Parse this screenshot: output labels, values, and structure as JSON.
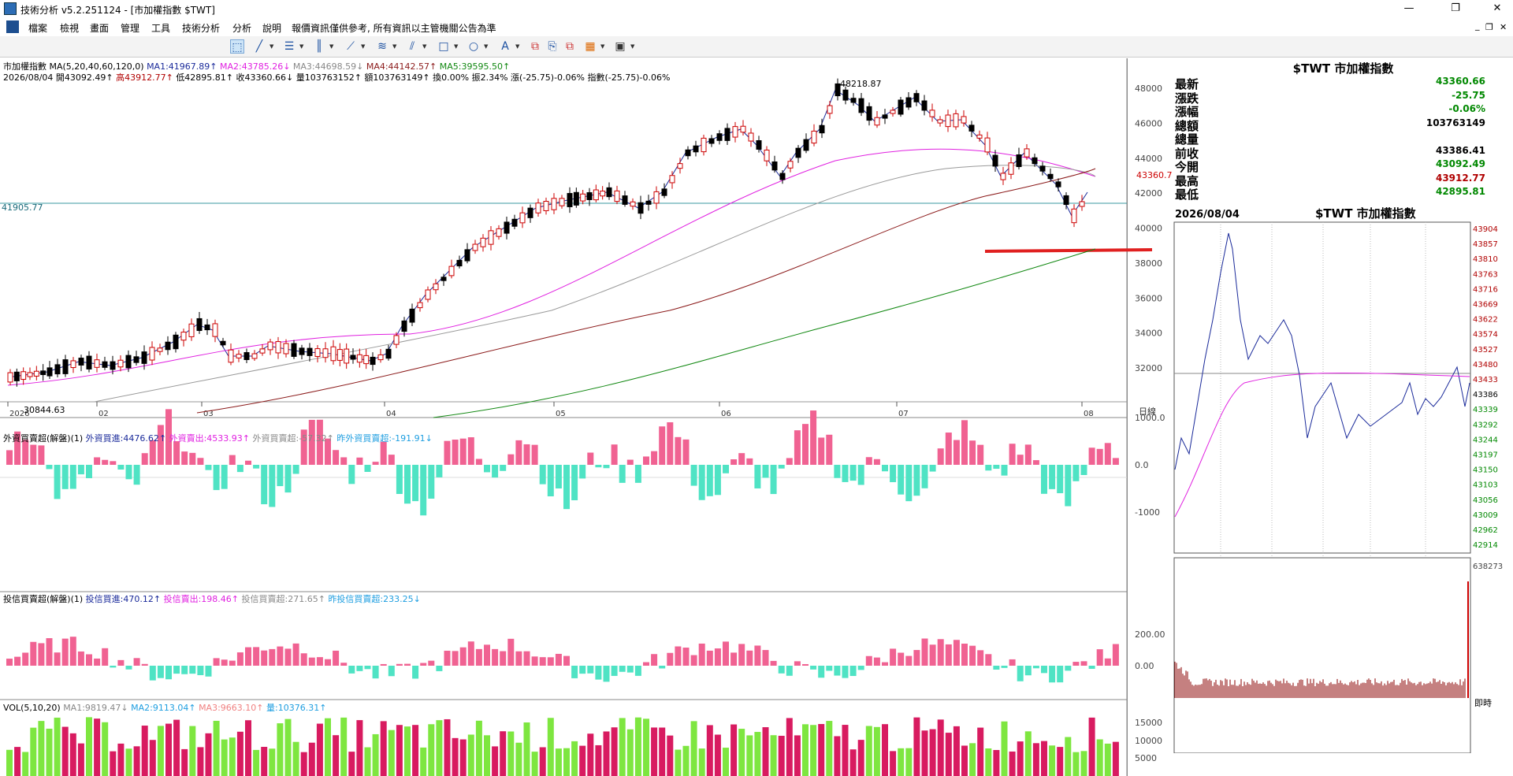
{
  "window": {
    "title": "技術分析 v5.2.251124 - [市加權指數 $TWT]",
    "min": "—",
    "restore": "❐",
    "close": "✕",
    "mdi_min": "_",
    "mdi_restore": "❐",
    "mdi_close": "✕"
  },
  "menu": [
    "檔案",
    "檢視",
    "畫面",
    "管理",
    "工具",
    "技術分析",
    "分析",
    "說明",
    "報價資訊僅供參考, 所有資訊以主管機關公告為準"
  ],
  "toolbar": {
    "icons": [
      "cursor-icon",
      "line-icon",
      "text-icon",
      "bars-icon",
      "fan-icon",
      "channel-icon",
      "pitchfork-icon",
      "rect-icon",
      "ellipse-icon",
      "text-a-icon",
      "copy-icon",
      "paste-icon",
      "grid-icon",
      "save-icon"
    ]
  },
  "main": {
    "title_line": "市加權指數 MA(5,20,40,60,120,0)",
    "ma_values": [
      {
        "text": "MA1:41967.89↑",
        "color": "#1a2a9a"
      },
      {
        "text": "MA2:43785.26↓",
        "color": "#e020e0"
      },
      {
        "text": "MA3:44698.59↓",
        "color": "#888888"
      },
      {
        "text": "MA4:44142.57↑",
        "color": "#8b1a1a"
      },
      {
        "text": "MA5:39595.50↑",
        "color": "#118811"
      }
    ],
    "ohlc": [
      {
        "text": "2026/08/04",
        "color": "#000"
      },
      {
        "text": "開43092.49↑",
        "color": "#000"
      },
      {
        "text": "高43912.77↑",
        "color": "#b00000"
      },
      {
        "text": "低42895.81↑",
        "color": "#000"
      },
      {
        "text": "收43360.66↓",
        "color": "#000"
      },
      {
        "text": "量103763152↑",
        "color": "#000"
      },
      {
        "text": "額103763149↑",
        "color": "#000"
      },
      {
        "text": "換0.00%",
        "color": "#000"
      },
      {
        "text": "振2.34%",
        "color": "#000"
      },
      {
        "text": "漲(-25.75)-0.06%",
        "color": "#000"
      },
      {
        "text": "指數(-25.75)-0.06%",
        "color": "#000"
      }
    ],
    "hline_label": "41905.77",
    "high_label": "48218.87",
    "low_label": "30844.63",
    "last_label": "43360.7",
    "months": [
      "2026",
      "02",
      "03",
      "04",
      "05",
      "06",
      "07",
      "08"
    ],
    "month_unit": "日線",
    "y_ticks": [
      "48000",
      "46000",
      "44000",
      "42000",
      "40000",
      "38000",
      "36000",
      "34000",
      "32000"
    ],
    "foreign": {
      "title": "外資買賣超(解盤)(1)",
      "buy": "外資買進:4476.62↑",
      "sell": "外資賣出:4533.93↑",
      "net": "外資買賣超:-57.32↑",
      "prev": "昨外資買賣超:-191.91↓",
      "ticks": [
        "1000.0",
        "0.0",
        "-1000"
      ]
    },
    "trust": {
      "title": "投信買賣超(解盤)(1)",
      "buy": "投信買進:470.12↑",
      "sell": "投信賣出:198.46↑",
      "net": "投信買賣超:271.65↑",
      "prev": "昨投信買賣超:233.25↓",
      "ticks": [
        "200.00",
        "0.00"
      ]
    },
    "volume": {
      "title": "VOL(5,10,20)",
      "ma1": "MA1:9819.47↓",
      "ma2": "MA2:9113.04↑",
      "ma3": "MA3:9663.10↑",
      "qty": "量:10376.31↑",
      "ticks": [
        "15000",
        "10000",
        "5000"
      ]
    }
  },
  "quote": {
    "title": "$TWT 市加權指數",
    "rows": [
      {
        "label": "最新",
        "value": "43360.66",
        "color": "#008800"
      },
      {
        "label": "漲跌",
        "value": "-25.75",
        "color": "#008800"
      },
      {
        "label": "漲幅",
        "value": "-0.06%",
        "color": "#008800"
      },
      {
        "label": "總額",
        "value": "103763149",
        "color": "#000000"
      },
      {
        "label": "總量",
        "value": "",
        "color": "#000000"
      },
      {
        "label": "前收",
        "value": "43386.41",
        "color": "#000000"
      },
      {
        "label": "今開",
        "value": "43092.49",
        "color": "#008800"
      },
      {
        "label": "最高",
        "value": "43912.77",
        "color": "#b00000"
      },
      {
        "label": "最低",
        "value": "42895.81",
        "color": "#008800"
      }
    ]
  },
  "intraday": {
    "date": "2026/08/04",
    "title": "$TWT 市加權指數",
    "price_ticks": [
      "43904",
      "43857",
      "43810",
      "43763",
      "43716",
      "43669",
      "43622",
      "43574",
      "43527",
      "43480",
      "43433",
      "43386",
      "43339",
      "43292",
      "43244",
      "43197",
      "43150",
      "43103",
      "43056",
      "43009",
      "42962",
      "42914"
    ],
    "vol_tick": "638273",
    "time_label": "即時"
  }
}
